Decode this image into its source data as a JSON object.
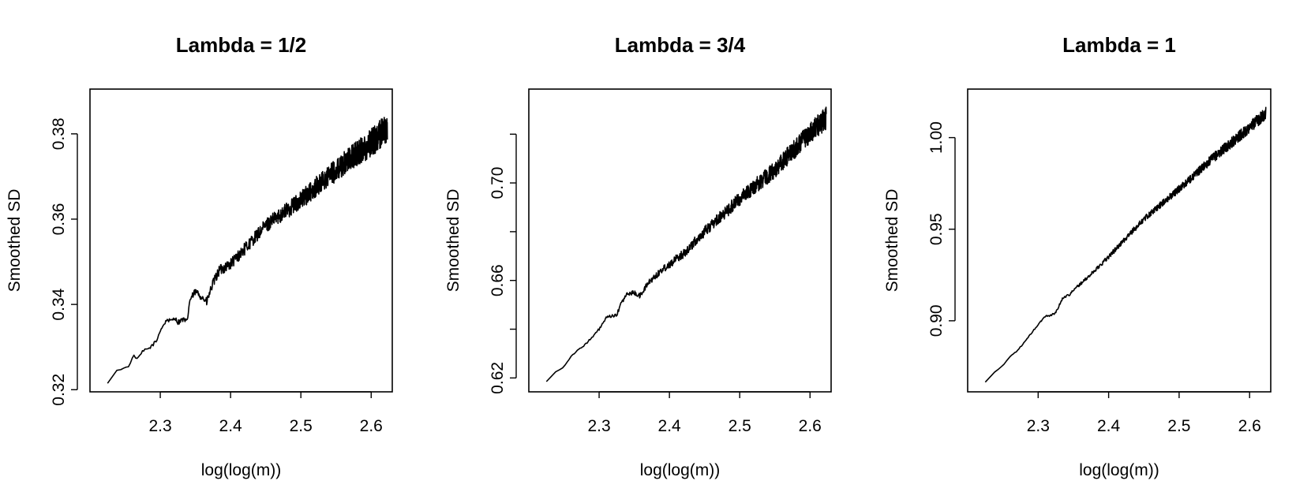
{
  "chart_data": [
    {
      "type": "line",
      "title": "Lambda = 1/2",
      "xlabel": "log(log(m))",
      "ylabel": "Smoothed SD",
      "xlim": [
        2.2,
        2.63
      ],
      "ylim": [
        0.3195,
        0.3905
      ],
      "x_ticks": [
        2.3,
        2.4,
        2.5,
        2.6
      ],
      "x_tick_labels": [
        "2.3",
        "2.4",
        "2.5",
        "2.6"
      ],
      "y_ticks": [
        0.32,
        0.34,
        0.36,
        0.38
      ],
      "y_tick_labels": [
        "0.32",
        "0.34",
        "0.36",
        "0.38"
      ],
      "grid": false,
      "series": [
        {
          "start_x": 2.225,
          "end_x": 2.623,
          "anchors": [
            [
              2.225,
              0.3215
            ],
            [
              2.235,
              0.3245
            ],
            [
              2.245,
              0.3248
            ],
            [
              2.255,
              0.3255
            ],
            [
              2.262,
              0.328
            ],
            [
              2.268,
              0.3272
            ],
            [
              2.275,
              0.329
            ],
            [
              2.285,
              0.3298
            ],
            [
              2.295,
              0.3315
            ],
            [
              2.3,
              0.334
            ],
            [
              2.31,
              0.3365
            ],
            [
              2.315,
              0.336
            ],
            [
              2.32,
              0.337
            ],
            [
              2.325,
              0.3358
            ],
            [
              2.332,
              0.3365
            ],
            [
              2.338,
              0.3358
            ],
            [
              2.342,
              0.341
            ],
            [
              2.35,
              0.343
            ],
            [
              2.358,
              0.342
            ],
            [
              2.366,
              0.3405
            ],
            [
              2.374,
              0.3445
            ],
            [
              2.384,
              0.348
            ],
            [
              2.4,
              0.3495
            ],
            [
              2.42,
              0.353
            ],
            [
              2.45,
              0.3585
            ],
            [
              2.5,
              0.3645
            ],
            [
              2.55,
              0.3715
            ],
            [
              2.6,
              0.378
            ],
            [
              2.623,
              0.3815
            ]
          ],
          "noise": [
            [
              2.225,
              0.0
            ],
            [
              2.33,
              0.0006
            ],
            [
              2.38,
              0.0012
            ],
            [
              2.45,
              0.0016
            ],
            [
              2.52,
              0.0024
            ],
            [
              2.58,
              0.003
            ],
            [
              2.623,
              0.0038
            ]
          ]
        }
      ]
    },
    {
      "type": "line",
      "title": "Lambda = 3/4",
      "xlabel": "log(log(m))",
      "ylabel": "Smoothed SD",
      "xlim": [
        2.2,
        2.63
      ],
      "ylim": [
        0.6143,
        0.7385
      ],
      "x_ticks": [
        2.3,
        2.4,
        2.5,
        2.6
      ],
      "x_tick_labels": [
        "2.3",
        "2.4",
        "2.5",
        "2.6"
      ],
      "y_ticks": [
        0.62,
        0.64,
        0.66,
        0.68,
        0.7,
        0.72
      ],
      "y_tick_labels": [
        "0.62",
        "",
        "0.66",
        "",
        "0.70",
        ""
      ],
      "grid": false,
      "series": [
        {
          "start_x": 2.225,
          "end_x": 2.623,
          "anchors": [
            [
              2.225,
              0.6185
            ],
            [
              2.235,
              0.622
            ],
            [
              2.25,
              0.6245
            ],
            [
              2.26,
              0.629
            ],
            [
              2.275,
              0.6325
            ],
            [
              2.29,
              0.6365
            ],
            [
              2.3,
              0.64
            ],
            [
              2.31,
              0.6445
            ],
            [
              2.318,
              0.6455
            ],
            [
              2.325,
              0.6455
            ],
            [
              2.33,
              0.65
            ],
            [
              2.34,
              0.6545
            ],
            [
              2.35,
              0.655
            ],
            [
              2.358,
              0.6535
            ],
            [
              2.37,
              0.659
            ],
            [
              2.39,
              0.6645
            ],
            [
              2.42,
              0.671
            ],
            [
              2.45,
              0.68
            ],
            [
              2.5,
              0.6935
            ],
            [
              2.55,
              0.7055
            ],
            [
              2.6,
              0.7205
            ],
            [
              2.623,
              0.7265
            ]
          ],
          "noise": [
            [
              2.225,
              0.0
            ],
            [
              2.34,
              0.0008
            ],
            [
              2.4,
              0.0016
            ],
            [
              2.47,
              0.0024
            ],
            [
              2.54,
              0.0034
            ],
            [
              2.6,
              0.0042
            ],
            [
              2.623,
              0.0048
            ]
          ]
        }
      ]
    },
    {
      "type": "line",
      "title": "Lambda = 1",
      "xlabel": "log(log(m))",
      "ylabel": "Smoothed SD",
      "xlim": [
        2.2,
        2.63
      ],
      "ylim": [
        0.8612,
        1.0265
      ],
      "x_ticks": [
        2.3,
        2.4,
        2.5,
        2.6
      ],
      "x_tick_labels": [
        "2.3",
        "2.4",
        "2.5",
        "2.6"
      ],
      "y_ticks": [
        0.9,
        0.95,
        1.0
      ],
      "y_tick_labels": [
        "0.90",
        "0.95",
        "1.00"
      ],
      "grid": false,
      "series": [
        {
          "start_x": 2.225,
          "end_x": 2.623,
          "anchors": [
            [
              2.225,
              0.8665
            ],
            [
              2.235,
              0.871
            ],
            [
              2.25,
              0.8755
            ],
            [
              2.26,
              0.8805
            ],
            [
              2.27,
              0.8835
            ],
            [
              2.28,
              0.888
            ],
            [
              2.295,
              0.8955
            ],
            [
              2.31,
              0.9025
            ],
            [
              2.318,
              0.903
            ],
            [
              2.325,
              0.9045
            ],
            [
              2.335,
              0.9125
            ],
            [
              2.345,
              0.9145
            ],
            [
              2.355,
              0.9185
            ],
            [
              2.37,
              0.9235
            ],
            [
              2.4,
              0.935
            ],
            [
              2.45,
              0.9555
            ],
            [
              2.5,
              0.972
            ],
            [
              2.55,
              0.9895
            ],
            [
              2.6,
              1.0055
            ],
            [
              2.623,
              1.0135
            ]
          ],
          "noise": [
            [
              2.225,
              0.0
            ],
            [
              2.34,
              0.0006
            ],
            [
              2.4,
              0.0012
            ],
            [
              2.48,
              0.0018
            ],
            [
              2.55,
              0.0026
            ],
            [
              2.623,
              0.0034
            ]
          ]
        }
      ]
    }
  ]
}
